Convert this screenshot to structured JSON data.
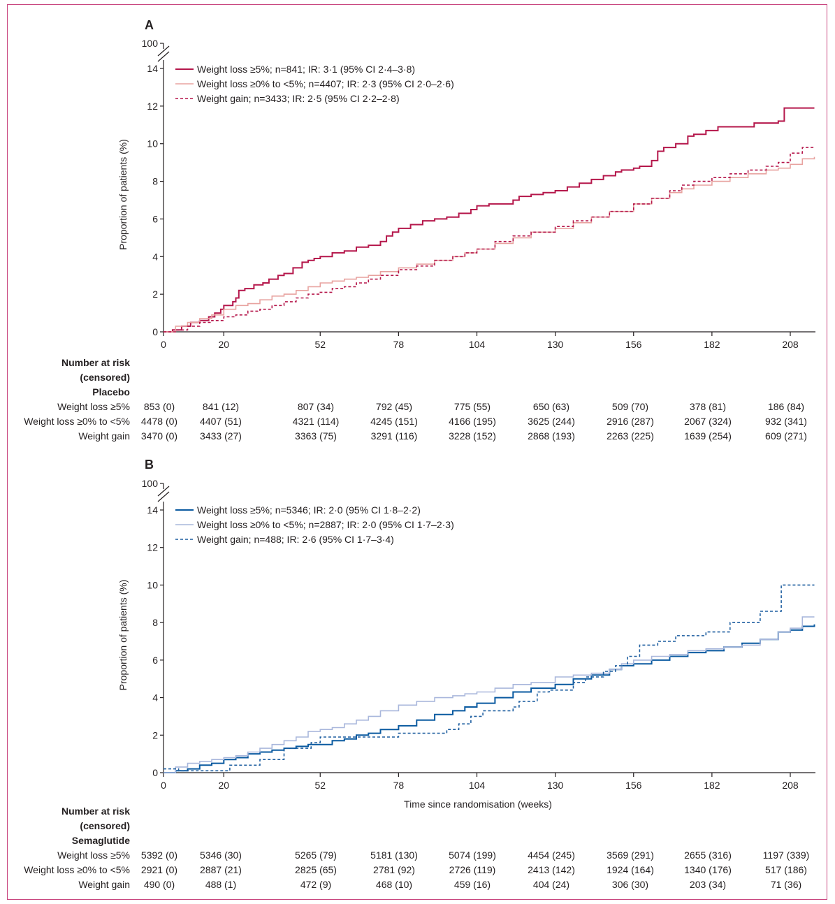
{
  "frame_color": "#c9457f",
  "chart_data": [
    {
      "type": "line",
      "subtype": "kaplan-meier-cumulative-incidence",
      "panel": "A",
      "title": "",
      "xlabel": "",
      "ylabel": "Proportion of patients (%)",
      "xlim": [
        0,
        216
      ],
      "ylim": [
        0,
        14
      ],
      "y_break_top_label": "100",
      "xticks": [
        0,
        20,
        52,
        78,
        104,
        130,
        156,
        182,
        208
      ],
      "yticks": [
        0,
        2,
        4,
        6,
        8,
        10,
        12,
        14
      ],
      "grid": false,
      "legend_position": "top-left",
      "series": [
        {
          "name": "Weight loss ≥5%; n=841; IR: 3·1 (95% CI 2·4–3·8)",
          "color": "#b5174b",
          "style": "solid",
          "width": 2,
          "x": [
            0,
            3,
            6,
            9,
            12,
            15,
            17,
            19,
            20,
            22,
            23,
            24,
            25,
            27,
            30,
            33,
            35,
            38,
            40,
            43,
            46,
            48,
            50,
            52,
            56,
            60,
            64,
            68,
            72,
            74,
            76,
            78,
            82,
            86,
            90,
            94,
            98,
            102,
            104,
            108,
            112,
            116,
            118,
            122,
            126,
            130,
            134,
            138,
            142,
            146,
            150,
            152,
            156,
            158,
            162,
            164,
            166,
            170,
            174,
            176,
            180,
            184,
            190,
            196,
            204,
            206,
            216
          ],
          "y": [
            0,
            0.1,
            0.3,
            0.5,
            0.6,
            0.8,
            1.0,
            1.2,
            1.4,
            1.4,
            1.6,
            1.8,
            2.2,
            2.3,
            2.5,
            2.6,
            2.8,
            3.0,
            3.1,
            3.4,
            3.7,
            3.8,
            3.9,
            4.0,
            4.2,
            4.3,
            4.5,
            4.6,
            4.8,
            5.1,
            5.3,
            5.5,
            5.7,
            5.9,
            6.0,
            6.1,
            6.3,
            6.5,
            6.7,
            6.8,
            6.8,
            7.0,
            7.2,
            7.3,
            7.4,
            7.5,
            7.7,
            7.9,
            8.1,
            8.3,
            8.5,
            8.6,
            8.7,
            8.8,
            9.1,
            9.6,
            9.8,
            10.0,
            10.4,
            10.5,
            10.7,
            10.9,
            10.9,
            11.1,
            11.2,
            11.9,
            11.9
          ]
        },
        {
          "name": "Weight loss ≥0% to <5%; n=4407; IR: 2·3 (95% CI 2·0–2·6)",
          "color": "#e8a3a0",
          "style": "solid",
          "width": 1.6,
          "x": [
            0,
            4,
            8,
            12,
            16,
            20,
            24,
            28,
            32,
            36,
            40,
            44,
            48,
            52,
            56,
            60,
            64,
            68,
            72,
            78,
            84,
            90,
            96,
            100,
            104,
            110,
            116,
            122,
            130,
            136,
            142,
            148,
            156,
            162,
            168,
            172,
            176,
            182,
            188,
            194,
            200,
            204,
            208,
            212,
            216
          ],
          "y": [
            0,
            0.3,
            0.5,
            0.7,
            0.9,
            1.2,
            1.4,
            1.5,
            1.7,
            1.9,
            2.0,
            2.2,
            2.4,
            2.6,
            2.7,
            2.8,
            2.9,
            3.0,
            3.2,
            3.4,
            3.6,
            3.8,
            4.0,
            4.2,
            4.4,
            4.7,
            5.0,
            5.3,
            5.5,
            5.8,
            6.1,
            6.4,
            6.8,
            7.1,
            7.4,
            7.6,
            7.8,
            8.0,
            8.2,
            8.4,
            8.6,
            8.7,
            8.9,
            9.2,
            9.3
          ]
        },
        {
          "name": "Weight gain; n=3433; IR: 2·5 (95% CI 2·2–2·8)",
          "color": "#b5174b",
          "style": "dashed",
          "width": 1.6,
          "x": [
            0,
            4,
            8,
            12,
            16,
            20,
            24,
            28,
            32,
            36,
            40,
            44,
            48,
            52,
            56,
            60,
            64,
            68,
            72,
            78,
            84,
            90,
            96,
            100,
            104,
            110,
            116,
            122,
            130,
            136,
            142,
            148,
            156,
            162,
            168,
            172,
            176,
            182,
            188,
            194,
            200,
            204,
            208,
            212,
            216
          ],
          "y": [
            0,
            0.1,
            0.3,
            0.5,
            0.6,
            0.8,
            0.9,
            1.1,
            1.2,
            1.4,
            1.6,
            1.8,
            2.0,
            2.1,
            2.3,
            2.4,
            2.6,
            2.8,
            3.0,
            3.3,
            3.5,
            3.8,
            4.0,
            4.2,
            4.4,
            4.8,
            5.1,
            5.3,
            5.6,
            5.9,
            6.1,
            6.4,
            6.8,
            7.1,
            7.5,
            7.8,
            8.0,
            8.2,
            8.4,
            8.6,
            8.8,
            9.0,
            9.5,
            9.8,
            9.8
          ]
        }
      ],
      "risk_table": {
        "header": [
          "Number at risk",
          "(censored)",
          "Placebo"
        ],
        "timepoints": [
          0,
          20,
          52,
          78,
          104,
          130,
          156,
          182,
          208
        ],
        "rows": [
          {
            "label": "Weight loss ≥5%",
            "values": [
              "853 (0)",
              "841 (12)",
              "807 (34)",
              "792 (45)",
              "775 (55)",
              "650 (63)",
              "509 (70)",
              "378 (81)",
              "186 (84)"
            ]
          },
          {
            "label": "Weight loss ≥0% to <5%",
            "values": [
              "4478 (0)",
              "4407 (51)",
              "4321 (114)",
              "4245 (151)",
              "4166 (195)",
              "3625 (244)",
              "2916 (287)",
              "2067 (324)",
              "932 (341)"
            ]
          },
          {
            "label": "Weight gain",
            "values": [
              "3470 (0)",
              "3433 (27)",
              "3363 (75)",
              "3291 (116)",
              "3228 (152)",
              "2868 (193)",
              "2263 (225)",
              "1639 (254)",
              "609 (271)"
            ]
          }
        ]
      }
    },
    {
      "type": "line",
      "subtype": "kaplan-meier-cumulative-incidence",
      "panel": "B",
      "title": "",
      "xlabel": "Time since randomisation (weeks)",
      "ylabel": "Proportion of patients (%)",
      "xlim": [
        0,
        216
      ],
      "ylim": [
        0,
        14
      ],
      "y_break_top_label": "100",
      "xticks": [
        0,
        20,
        52,
        78,
        104,
        130,
        156,
        182,
        208
      ],
      "yticks": [
        0,
        2,
        4,
        6,
        8,
        10,
        12,
        14
      ],
      "grid": false,
      "legend_position": "top-left",
      "series": [
        {
          "name": "Weight loss ≥5%; n=5346; IR: 2·0 (95% CI 1·8–2·2)",
          "color": "#0a5aa0",
          "style": "solid",
          "width": 2,
          "x": [
            0,
            4,
            8,
            12,
            16,
            20,
            24,
            28,
            32,
            36,
            40,
            44,
            48,
            52,
            56,
            60,
            64,
            68,
            72,
            78,
            84,
            90,
            96,
            100,
            104,
            110,
            116,
            122,
            130,
            136,
            142,
            148,
            152,
            156,
            162,
            168,
            174,
            180,
            186,
            192,
            198,
            204,
            208,
            212,
            216
          ],
          "y": [
            0,
            0.1,
            0.2,
            0.4,
            0.5,
            0.7,
            0.8,
            1.0,
            1.1,
            1.2,
            1.3,
            1.4,
            1.5,
            1.5,
            1.7,
            1.8,
            2.0,
            2.1,
            2.3,
            2.5,
            2.8,
            3.1,
            3.3,
            3.5,
            3.7,
            4.0,
            4.3,
            4.5,
            4.7,
            5.0,
            5.2,
            5.5,
            5.7,
            5.8,
            6.0,
            6.2,
            6.4,
            6.5,
            6.7,
            6.9,
            7.1,
            7.5,
            7.6,
            7.8,
            7.9
          ]
        },
        {
          "name": "Weight loss ≥0% to <5%; n=2887; IR: 2·0 (95% CI 1·7–2·3)",
          "color": "#a9b7dc",
          "style": "solid",
          "width": 1.6,
          "x": [
            0,
            4,
            8,
            12,
            16,
            20,
            24,
            28,
            32,
            36,
            40,
            44,
            48,
            52,
            56,
            60,
            64,
            68,
            72,
            78,
            84,
            90,
            96,
            100,
            104,
            110,
            116,
            122,
            130,
            136,
            142,
            148,
            152,
            156,
            162,
            168,
            174,
            180,
            186,
            192,
            198,
            204,
            208,
            212,
            216
          ],
          "y": [
            0,
            0.3,
            0.5,
            0.6,
            0.7,
            0.8,
            0.9,
            1.1,
            1.3,
            1.5,
            1.7,
            1.9,
            2.2,
            2.3,
            2.4,
            2.6,
            2.8,
            3.0,
            3.3,
            3.6,
            3.8,
            4.0,
            4.1,
            4.2,
            4.3,
            4.5,
            4.7,
            4.8,
            5.1,
            5.2,
            5.3,
            5.5,
            5.8,
            6.0,
            6.2,
            6.3,
            6.5,
            6.6,
            6.7,
            6.8,
            7.1,
            7.5,
            7.7,
            8.3,
            8.3
          ]
        },
        {
          "name": "Weight gain; n=488; IR: 2·6 (95% CI 1·7–3·4)",
          "color": "#1f5fa0",
          "style": "dashed",
          "width": 1.6,
          "x": [
            0,
            5,
            20,
            22,
            32,
            40,
            49,
            52,
            56,
            68,
            78,
            84,
            90,
            94,
            98,
            102,
            106,
            112,
            116,
            118,
            124,
            128,
            136,
            140,
            146,
            150,
            154,
            158,
            164,
            170,
            180,
            188,
            198,
            205,
            216
          ],
          "y": [
            0.2,
            0.1,
            0.1,
            0.4,
            0.7,
            1.3,
            1.6,
            1.9,
            1.9,
            1.9,
            2.1,
            2.1,
            2.1,
            2.3,
            2.6,
            3.0,
            3.3,
            3.3,
            3.5,
            3.8,
            4.3,
            4.4,
            4.8,
            5.1,
            5.4,
            5.7,
            6.2,
            6.8,
            7.0,
            7.3,
            7.5,
            8.0,
            8.6,
            10.0,
            10.0
          ]
        }
      ],
      "risk_table": {
        "header": [
          "Number at risk",
          "(censored)",
          "Semaglutide"
        ],
        "timepoints": [
          0,
          20,
          52,
          78,
          104,
          130,
          156,
          182,
          208
        ],
        "rows": [
          {
            "label": "Weight loss ≥5%",
            "values": [
              "5392 (0)",
              "5346 (30)",
              "5265 (79)",
              "5181 (130)",
              "5074 (199)",
              "4454 (245)",
              "3569 (291)",
              "2655 (316)",
              "1197 (339)"
            ]
          },
          {
            "label": "Weight loss ≥0% to <5%",
            "values": [
              "2921 (0)",
              "2887 (21)",
              "2825 (65)",
              "2781 (92)",
              "2726 (119)",
              "2413 (142)",
              "1924 (164)",
              "1340 (176)",
              "517 (186)"
            ]
          },
          {
            "label": "Weight gain",
            "values": [
              "490 (0)",
              "488 (1)",
              "472 (9)",
              "468 (10)",
              "459 (16)",
              "404 (24)",
              "306 (30)",
              "203 (34)",
              "71 (36)"
            ]
          }
        ]
      }
    }
  ]
}
